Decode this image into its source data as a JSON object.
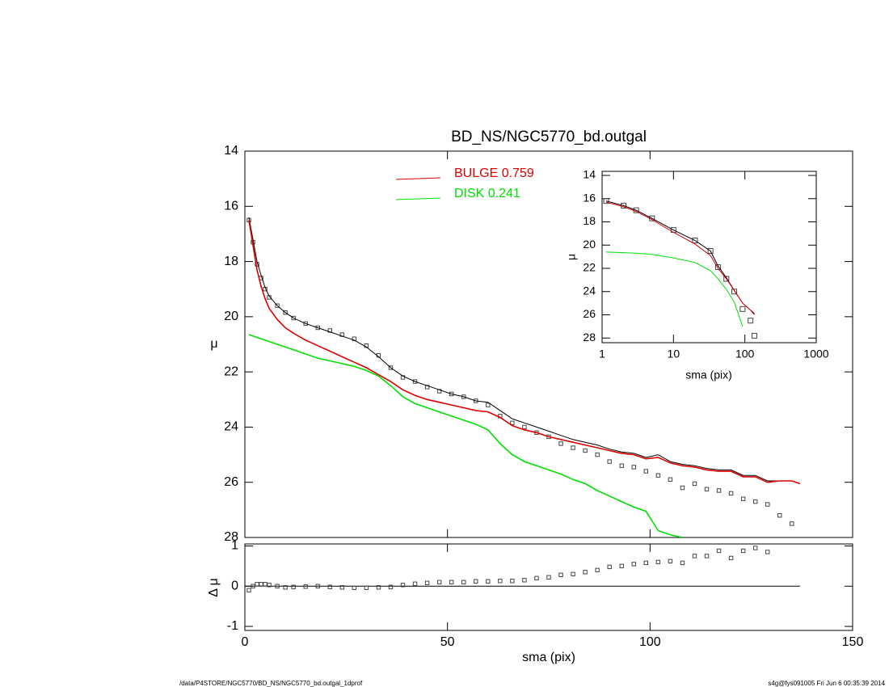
{
  "chart_data": [
    {
      "type": "line",
      "title": "BD_NS/NGC5770_bd.outgal",
      "ylabel": "μ",
      "xlim": [
        0,
        150
      ],
      "ylim": [
        28,
        14
      ],
      "yticks": [
        14,
        16,
        18,
        20,
        22,
        24,
        26,
        28
      ],
      "x": [
        1,
        2,
        3,
        4,
        5,
        6,
        8,
        10,
        12,
        15,
        18,
        21,
        24,
        27,
        30,
        33,
        36,
        39,
        42,
        45,
        48,
        51,
        54,
        57,
        60,
        63,
        66,
        69,
        72,
        75,
        78,
        81,
        84,
        87,
        90,
        93,
        96,
        99,
        102,
        105,
        108,
        111,
        114,
        117,
        120,
        123,
        126,
        129,
        132,
        135,
        137
      ],
      "series": [
        {
          "style": "markers",
          "color": "#444444",
          "values": [
            16.5,
            17.3,
            18.1,
            18.6,
            19.0,
            19.3,
            19.6,
            19.85,
            20.05,
            20.25,
            20.4,
            20.5,
            20.65,
            20.8,
            21.05,
            21.4,
            21.85,
            22.2,
            22.35,
            22.55,
            22.7,
            22.8,
            22.9,
            23.05,
            23.2,
            23.6,
            23.85,
            24.0,
            24.2,
            24.35,
            24.6,
            24.75,
            24.85,
            25.0,
            25.25,
            25.4,
            25.45,
            25.6,
            25.75,
            25.9,
            26.2,
            26.05,
            26.25,
            26.3,
            26.4,
            26.6,
            26.7,
            26.8,
            27.2,
            27.5,
            null
          ]
        },
        {
          "style": "line",
          "color": "#000000",
          "values": [
            16.4,
            17.2,
            18.0,
            18.5,
            18.95,
            19.25,
            19.6,
            19.85,
            20.05,
            20.25,
            20.4,
            20.55,
            20.7,
            20.85,
            21.1,
            21.45,
            21.85,
            22.15,
            22.35,
            22.5,
            22.65,
            22.8,
            22.9,
            23.05,
            23.1,
            23.4,
            23.7,
            23.85,
            24.0,
            24.15,
            24.3,
            24.45,
            24.55,
            24.65,
            24.8,
            24.9,
            24.95,
            25.1,
            25.0,
            25.25,
            25.35,
            25.4,
            25.5,
            25.55,
            25.55,
            25.75,
            25.75,
            25.95,
            25.95,
            25.95,
            26.05
          ]
        },
        {
          "name": "BULGE  0.759",
          "style": "line",
          "color": "#e00000",
          "values": [
            16.5,
            17.4,
            18.3,
            18.9,
            19.35,
            19.7,
            20.1,
            20.4,
            20.6,
            20.85,
            21.05,
            21.25,
            21.45,
            21.65,
            21.85,
            22.1,
            22.35,
            22.65,
            22.85,
            23.0,
            23.1,
            23.2,
            23.3,
            23.4,
            23.45,
            23.65,
            23.95,
            24.1,
            24.2,
            24.35,
            24.45,
            24.55,
            24.65,
            24.75,
            24.85,
            24.95,
            25.0,
            25.15,
            25.1,
            25.3,
            25.4,
            25.45,
            25.55,
            25.6,
            25.6,
            25.8,
            25.8,
            26.0,
            25.95,
            25.95,
            26.05
          ]
        },
        {
          "name": "DISK  0.241",
          "style": "line",
          "color": "#00e000",
          "values": [
            20.65,
            20.7,
            20.75,
            20.8,
            20.85,
            20.9,
            21.0,
            21.1,
            21.2,
            21.35,
            21.5,
            21.6,
            21.7,
            21.8,
            21.95,
            22.15,
            22.5,
            22.9,
            23.15,
            23.3,
            23.45,
            23.6,
            23.75,
            23.9,
            24.1,
            24.6,
            25.0,
            25.25,
            25.4,
            25.55,
            25.7,
            25.9,
            26.05,
            26.3,
            26.5,
            26.7,
            26.9,
            27.05,
            27.75,
            27.9,
            28.0,
            null,
            null,
            null,
            null,
            null,
            null,
            null,
            null,
            null,
            null
          ]
        }
      ]
    },
    {
      "type": "scatter",
      "xlabel": "sma (pix)",
      "ylabel": "Δ μ",
      "color": "#444444",
      "xlim": [
        0,
        150
      ],
      "xticks": [
        0,
        50,
        100,
        150
      ],
      "ylim": [
        -1.1,
        1.05
      ],
      "yticks": [
        -1,
        0,
        1
      ],
      "x": [
        1,
        2,
        3,
        4,
        5,
        6,
        8,
        10,
        12,
        15,
        18,
        21,
        24,
        27,
        30,
        33,
        36,
        39,
        42,
        45,
        48,
        51,
        54,
        57,
        60,
        63,
        66,
        69,
        72,
        75,
        78,
        81,
        84,
        87,
        90,
        93,
        96,
        99,
        102,
        105,
        108,
        111,
        114,
        117,
        120,
        123,
        126,
        129
      ],
      "values": [
        -0.1,
        0.0,
        0.05,
        0.05,
        0.05,
        0.03,
        0.0,
        -0.03,
        -0.02,
        -0.01,
        0.0,
        -0.02,
        -0.03,
        -0.04,
        -0.04,
        -0.03,
        -0.02,
        0.03,
        0.06,
        0.08,
        0.1,
        0.1,
        0.1,
        0.12,
        0.12,
        0.13,
        0.13,
        0.15,
        0.2,
        0.22,
        0.28,
        0.3,
        0.35,
        0.4,
        0.48,
        0.5,
        0.55,
        0.58,
        0.6,
        0.62,
        0.58,
        0.75,
        0.75,
        0.88,
        0.7,
        0.88,
        0.95,
        0.85
      ]
    },
    {
      "type": "line",
      "log_x": true,
      "xlabel": "sma (pix)",
      "ylabel": "μ",
      "xlim": [
        1,
        1000
      ],
      "xticks": [
        1,
        10,
        100,
        1000
      ],
      "ylim": [
        28.4,
        13.65
      ],
      "yticks": [
        14,
        16,
        18,
        20,
        22,
        24,
        26,
        28
      ],
      "x": [
        1.14,
        2,
        3,
        5,
        10,
        20,
        33,
        42,
        55,
        71,
        93,
        120,
        136
      ],
      "series": [
        {
          "style": "markers",
          "color": "#444444",
          "values": [
            16.2,
            16.6,
            17.0,
            17.7,
            18.7,
            19.6,
            20.5,
            21.9,
            22.9,
            24.0,
            25.5,
            26.5,
            27.8
          ]
        },
        {
          "style": "line",
          "color": "#000000",
          "values": [
            16.2,
            16.6,
            17.0,
            17.7,
            18.7,
            19.6,
            20.5,
            21.8,
            22.8,
            23.9,
            25.0,
            25.6,
            25.9
          ]
        },
        {
          "style": "line",
          "color": "#e00000",
          "values": [
            16.3,
            16.7,
            17.1,
            17.8,
            18.9,
            19.9,
            20.9,
            22.0,
            22.9,
            23.9,
            25.0,
            25.6,
            26.0
          ]
        },
        {
          "style": "line",
          "color": "#00e000",
          "values": [
            20.6,
            20.65,
            20.7,
            20.8,
            21.1,
            21.5,
            22.2,
            22.9,
            23.8,
            24.9,
            27.0,
            null,
            null
          ]
        }
      ]
    }
  ],
  "footer": {
    "left": "/data/P4STORE/NGC5770/BD_NS/NGC5770_bd.outgal_1dprof",
    "right": "s4g@fys091005  Fri Jun  6 00:35:39 2014"
  }
}
